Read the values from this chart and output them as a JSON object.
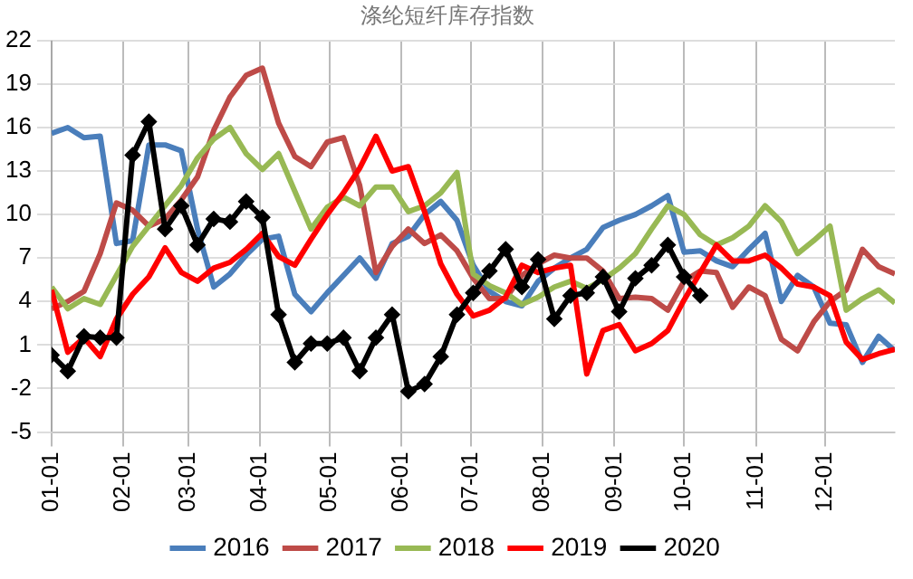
{
  "chart_data": {
    "type": "line",
    "title": "涤纶短纤库存指数",
    "x": [
      "--01-01",
      "--01-08",
      "--01-15",
      "--01-22",
      "--01-29",
      "--02-05",
      "--02-12",
      "--02-19",
      "--02-26",
      "--03-05",
      "--03-12",
      "--03-19",
      "--03-26",
      "--04-02",
      "--04-09",
      "--04-16",
      "--04-23",
      "--04-30",
      "--05-07",
      "--05-14",
      "--05-21",
      "--05-28",
      "--06-04",
      "--06-11",
      "--06-18",
      "--06-25",
      "--07-02",
      "--07-09",
      "--07-16",
      "--07-23",
      "--07-30",
      "--08-06",
      "--08-13",
      "--08-20",
      "--08-27",
      "--09-03",
      "--09-10",
      "--09-17",
      "--09-24",
      "--10-01",
      "--10-08",
      "--10-15",
      "--10-22",
      "--10-29",
      "--11-05",
      "--11-12",
      "--11-19",
      "--11-26",
      "--12-03",
      "--12-10",
      "--12-17",
      "--12-24",
      "--12-31"
    ],
    "series": [
      {
        "name": "2016",
        "color": "#4a7ebb",
        "marker": "none",
        "values": [
          15.6,
          16.0,
          15.3,
          15.4,
          8.0,
          8.2,
          14.8,
          14.8,
          14.4,
          9.0,
          5.0,
          5.9,
          7.2,
          8.3,
          8.5,
          4.5,
          3.3,
          4.6,
          5.8,
          7.0,
          5.6,
          8.0,
          8.5,
          10.0,
          10.9,
          9.6,
          6.5,
          4.7,
          4.0,
          3.7,
          5.4,
          6.3,
          7.0,
          7.6,
          9.1,
          9.6,
          10.0,
          10.6,
          11.3,
          7.4,
          7.5,
          6.8,
          6.4,
          7.6,
          8.7,
          4.0,
          5.8,
          5.0,
          2.5,
          2.4,
          -0.2,
          1.6,
          0.6
        ]
      },
      {
        "name": "2017",
        "color": "#be4b48",
        "marker": "none",
        "values": [
          3.5,
          4.0,
          4.7,
          7.3,
          10.8,
          10.3,
          9.2,
          9.7,
          11.0,
          12.6,
          15.8,
          18.1,
          19.6,
          20.1,
          16.3,
          14.0,
          13.3,
          15.0,
          15.3,
          12.0,
          6.0,
          7.8,
          9.0,
          8.0,
          8.6,
          7.5,
          5.6,
          4.2,
          4.2,
          5.8,
          6.6,
          7.2,
          7.0,
          7.0,
          6.1,
          4.2,
          4.3,
          4.2,
          3.4,
          5.4,
          6.1,
          6.0,
          3.6,
          5.0,
          4.4,
          1.4,
          0.6,
          2.6,
          4.0,
          4.8,
          7.6,
          6.4,
          5.9
        ]
      },
      {
        "name": "2018",
        "color": "#98b954",
        "marker": "none",
        "values": [
          5.0,
          3.5,
          4.2,
          3.8,
          5.8,
          7.8,
          9.2,
          10.6,
          12.0,
          13.9,
          15.2,
          16.0,
          14.2,
          13.1,
          14.2,
          11.6,
          9.0,
          10.5,
          11.2,
          10.6,
          11.9,
          11.9,
          10.2,
          10.6,
          11.5,
          12.9,
          5.9,
          5.1,
          4.6,
          3.8,
          4.3,
          5.0,
          5.4,
          4.9,
          5.5,
          6.3,
          7.3,
          9.0,
          10.6,
          10.0,
          8.6,
          7.9,
          8.4,
          9.2,
          10.6,
          9.5,
          7.3,
          8.2,
          9.2,
          3.4,
          4.2,
          4.8,
          3.9
        ]
      },
      {
        "name": "2019",
        "color": "#ff0000",
        "marker": "none",
        "values": [
          4.8,
          0.5,
          1.5,
          0.2,
          2.8,
          4.5,
          5.7,
          7.7,
          6.0,
          5.4,
          6.3,
          6.7,
          7.6,
          8.7,
          7.1,
          6.5,
          8.3,
          10.0,
          11.5,
          13.2,
          15.4,
          13.0,
          13.3,
          10.2,
          6.6,
          4.5,
          3.0,
          3.4,
          4.3,
          6.5,
          6.0,
          6.3,
          6.5,
          -1.0,
          2.0,
          2.4,
          0.6,
          1.1,
          2.0,
          4.1,
          6.0,
          7.9,
          6.8,
          6.8,
          7.2,
          6.3,
          5.2,
          5.0,
          4.4,
          1.2,
          0.0,
          0.4,
          0.7
        ]
      },
      {
        "name": "2020",
        "color": "#000000",
        "marker": "diamond",
        "x": [
          "--01-01",
          "--01-08",
          "--01-15",
          "--01-22",
          "--01-29",
          "--02-05",
          "--02-12",
          "--02-19",
          "--02-26",
          "--03-05",
          "--03-12",
          "--03-19",
          "--03-26",
          "--04-02",
          "--04-09",
          "--04-16",
          "--04-23",
          "--04-30",
          "--05-07",
          "--05-14",
          "--05-21",
          "--05-28",
          "--06-04",
          "--06-11",
          "--06-18",
          "--06-25",
          "--07-02",
          "--07-09",
          "--07-16",
          "--07-23",
          "--07-30",
          "--08-06",
          "--08-13",
          "--08-20",
          "--08-27",
          "--09-03",
          "--09-10",
          "--09-17",
          "--09-24",
          "--10-01",
          "--10-08"
        ],
        "values": [
          0.3,
          -0.8,
          1.6,
          1.5,
          1.5,
          14.1,
          16.4,
          9.0,
          10.6,
          7.9,
          9.7,
          9.5,
          10.9,
          9.8,
          3.1,
          -0.2,
          1.1,
          1.1,
          1.5,
          -0.8,
          1.5,
          3.1,
          -2.2,
          -1.7,
          0.2,
          3.1,
          4.6,
          6.1,
          7.6,
          5.0,
          6.9,
          2.8,
          4.4,
          4.6,
          5.7,
          3.3,
          5.6,
          6.5,
          7.9,
          5.7,
          4.4
        ]
      }
    ],
    "xlim": [
      "--01-01",
      "--12-31"
    ],
    "xticks": [
      {
        "value": "--01-01",
        "label": "01-01"
      },
      {
        "value": "--02-01",
        "label": "02-01"
      },
      {
        "value": "--03-01",
        "label": "03-01"
      },
      {
        "value": "--04-01",
        "label": "04-01"
      },
      {
        "value": "--05-01",
        "label": "05-01"
      },
      {
        "value": "--06-01",
        "label": "06-01"
      },
      {
        "value": "--07-01",
        "label": "07-01"
      },
      {
        "value": "--08-01",
        "label": "08-01"
      },
      {
        "value": "--09-01",
        "label": "09-01"
      },
      {
        "value": "--10-01",
        "label": "10-01"
      },
      {
        "value": "--11-01",
        "label": "11-01"
      },
      {
        "value": "--12-01",
        "label": "12-01"
      }
    ],
    "ylim": [
      -5,
      22
    ],
    "yticks": [
      -5,
      -2,
      1,
      4,
      7,
      10,
      13,
      16,
      19,
      22
    ],
    "grid": true,
    "legend": "bottom"
  }
}
